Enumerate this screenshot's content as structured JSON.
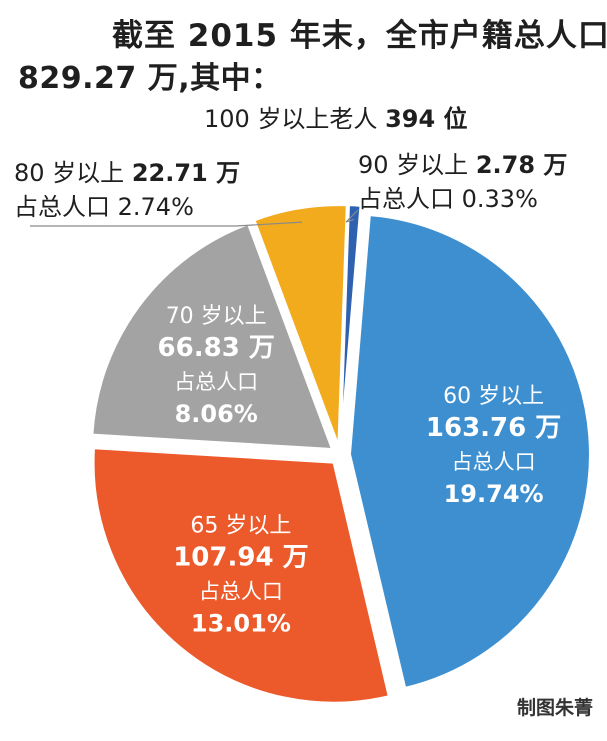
{
  "header": {
    "title_line1": "截至 2015 年末，全市户籍总人口",
    "title_line2": "829.27 万,其中：",
    "centenarian_prefix": "100 岁以上老人",
    "centenarian_value": "394 位"
  },
  "callouts": {
    "age80": {
      "line1_label": "80 岁以上",
      "line1_value": "22.71 万",
      "line2": "占总人口 2.74%"
    },
    "age90": {
      "line1_label": "90 岁以上",
      "line1_value": "2.78 万",
      "line2": "占总人口 0.33%"
    }
  },
  "credit": "制图朱菁",
  "chart_data": {
    "type": "pie",
    "total_population": "829.27 万",
    "slices": [
      {
        "category": "90 岁以上",
        "value": 2.78,
        "value_label": "2.78 万",
        "share_label": "占总人口",
        "percent_label": "0.33%",
        "color": "#2e62b0",
        "label_inside": false
      },
      {
        "category": "60 岁以上",
        "value": 163.76,
        "value_label": "163.76 万",
        "share_label": "占总人口",
        "percent_label": "19.74%",
        "color": "#3d8fd0",
        "label_inside": true
      },
      {
        "category": "65 岁以上",
        "value": 107.94,
        "value_label": "107.94 万",
        "share_label": "占总人口",
        "percent_label": "13.01%",
        "color": "#ec5a2c",
        "label_inside": true
      },
      {
        "category": "70 岁以上",
        "value": 66.83,
        "value_label": "66.83 万",
        "share_label": "占总人口",
        "percent_label": "8.06%",
        "color": "#a3a3a3",
        "label_inside": true
      },
      {
        "category": "80 岁以上",
        "value": 22.71,
        "value_label": "22.71 万",
        "share_label": "占总人口",
        "percent_label": "2.74%",
        "color": "#f2ab1d",
        "label_inside": false
      }
    ]
  }
}
